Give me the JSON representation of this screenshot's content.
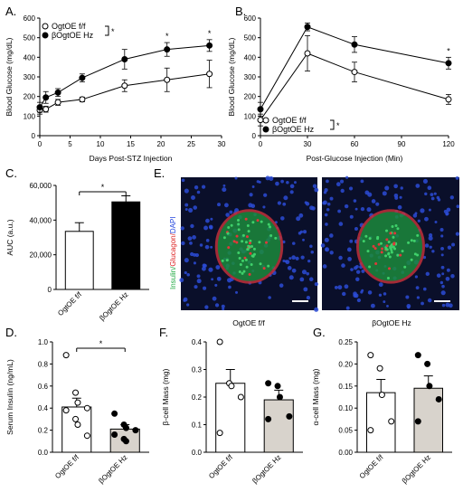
{
  "panels": {
    "A": "A.",
    "B": "B.",
    "C": "C.",
    "D": "D.",
    "E": "E.",
    "F": "F.",
    "G": "G."
  },
  "colors": {
    "black": "#000000",
    "white": "#ffffff",
    "gray_bar": "#d8d3cc",
    "stain_bg": "#0a0f2a"
  },
  "chart_data": [
    {
      "id": "A",
      "type": "line",
      "xlabel": "Days Post-STZ Injection",
      "ylabel": "Blood Glucose (mg/dL)",
      "xlim": [
        0,
        30
      ],
      "ylim": [
        0,
        600
      ],
      "xticks": [
        "0",
        "5",
        "10",
        "15",
        "20",
        "25",
        "30"
      ],
      "yticks": [
        "0",
        "100",
        "200",
        "300",
        "400",
        "500",
        "600"
      ],
      "legend_position": "top-left",
      "significance": "*",
      "annotations": [
        "*",
        "*"
      ],
      "series": [
        {
          "name": "OgtOE f/f",
          "marker": "open-circle",
          "x": [
            0,
            1,
            3,
            7,
            14,
            21,
            28
          ],
          "y": [
            130,
            135,
            170,
            185,
            255,
            285,
            315
          ],
          "err": [
            20,
            15,
            15,
            12,
            30,
            60,
            70
          ]
        },
        {
          "name": "βOgtOE Hz",
          "marker": "filled-circle",
          "x": [
            0,
            1,
            3,
            7,
            14,
            21,
            28
          ],
          "y": [
            145,
            195,
            220,
            295,
            390,
            440,
            460
          ],
          "err": [
            25,
            30,
            20,
            20,
            50,
            35,
            30
          ]
        }
      ]
    },
    {
      "id": "B",
      "type": "line",
      "xlabel": "Post-Glucose Injection (Min)",
      "ylabel": "Blood Glucose (mg/dL)",
      "xlim": [
        0,
        120
      ],
      "ylim": [
        0,
        600
      ],
      "xticks": [
        "0",
        "30",
        "60",
        "90",
        "120"
      ],
      "yticks": [
        "0",
        "100",
        "200",
        "300",
        "400",
        "500",
        "600"
      ],
      "legend_position": "bottom-left",
      "significance": "*",
      "annotations": [
        "*"
      ],
      "series": [
        {
          "name": "OgtOE f/f",
          "marker": "open-circle",
          "x": [
            0,
            30,
            60,
            120
          ],
          "y": [
            80,
            420,
            325,
            185
          ],
          "err": [
            30,
            90,
            50,
            25
          ]
        },
        {
          "name": "βOgtOE Hz",
          "marker": "filled-circle",
          "x": [
            0,
            30,
            60,
            120
          ],
          "y": [
            135,
            555,
            465,
            370
          ],
          "err": [
            35,
            20,
            40,
            30
          ]
        }
      ]
    },
    {
      "id": "C",
      "type": "bar",
      "ylabel": "AUC (a.u.)",
      "ylim": [
        0,
        60000
      ],
      "yticks": [
        "0",
        "20,000",
        "40,000",
        "60,000"
      ],
      "categories": [
        "OgtOE f/f",
        "βOgtOE Hz"
      ],
      "values": [
        33500,
        50500
      ],
      "err": [
        5000,
        3500
      ],
      "fills": [
        "white",
        "black"
      ],
      "significance": "*"
    },
    {
      "id": "D",
      "type": "bar",
      "ylabel": "Serum Insulin (ng/mL)",
      "ylim": [
        0,
        1.0
      ],
      "yticks": [
        "0.0",
        "0.2",
        "0.4",
        "0.6",
        "0.8",
        "1.0"
      ],
      "categories": [
        "OgtOE f/f",
        "βOgtOE Hz"
      ],
      "values": [
        0.41,
        0.21
      ],
      "err": [
        0.08,
        0.04
      ],
      "fills": [
        "white",
        "gray"
      ],
      "points": [
        [
          0.88,
          0.54,
          0.45,
          0.4,
          0.38,
          0.3,
          0.25,
          0.15
        ],
        [
          0.35,
          0.25,
          0.22,
          0.2,
          0.16,
          0.12,
          0.1
        ]
      ],
      "significance": "*"
    },
    {
      "id": "F",
      "type": "bar",
      "ylabel": "β-cell Mass (mg)",
      "ylim": [
        0,
        0.4
      ],
      "yticks": [
        "0.0",
        "0.1",
        "0.2",
        "0.3",
        "0.4"
      ],
      "categories": [
        "OgtOE f/f",
        "βOgtOE Hz"
      ],
      "values": [
        0.25,
        0.19
      ],
      "err": [
        0.05,
        0.035
      ],
      "fills": [
        "white",
        "gray"
      ],
      "points": [
        [
          0.4,
          0.25,
          0.24,
          0.2,
          0.07
        ],
        [
          0.25,
          0.24,
          0.2,
          0.13,
          0.12
        ]
      ]
    },
    {
      "id": "G",
      "type": "bar",
      "ylabel": "α-cell Mass (mg)",
      "ylim": [
        0,
        0.25
      ],
      "yticks": [
        "0.00",
        "0.05",
        "0.10",
        "0.15",
        "0.20",
        "0.25"
      ],
      "categories": [
        "OgtOE f/f",
        "βOgtOE Hz"
      ],
      "values": [
        0.135,
        0.145
      ],
      "err": [
        0.03,
        0.028
      ],
      "fills": [
        "white",
        "gray"
      ],
      "points": [
        [
          0.22,
          0.19,
          0.13,
          0.07,
          0.05
        ],
        [
          0.22,
          0.2,
          0.15,
          0.12,
          0.07
        ]
      ]
    }
  ],
  "image_panel": {
    "stain_label_parts": [
      "Insulin/",
      "Glucagon/",
      "DAPI"
    ],
    "stain_colors": [
      "#22aa44",
      "#dd2222",
      "#2244dd"
    ],
    "captions": [
      "OgtOE f/f",
      "βOgtOE Hz"
    ]
  }
}
